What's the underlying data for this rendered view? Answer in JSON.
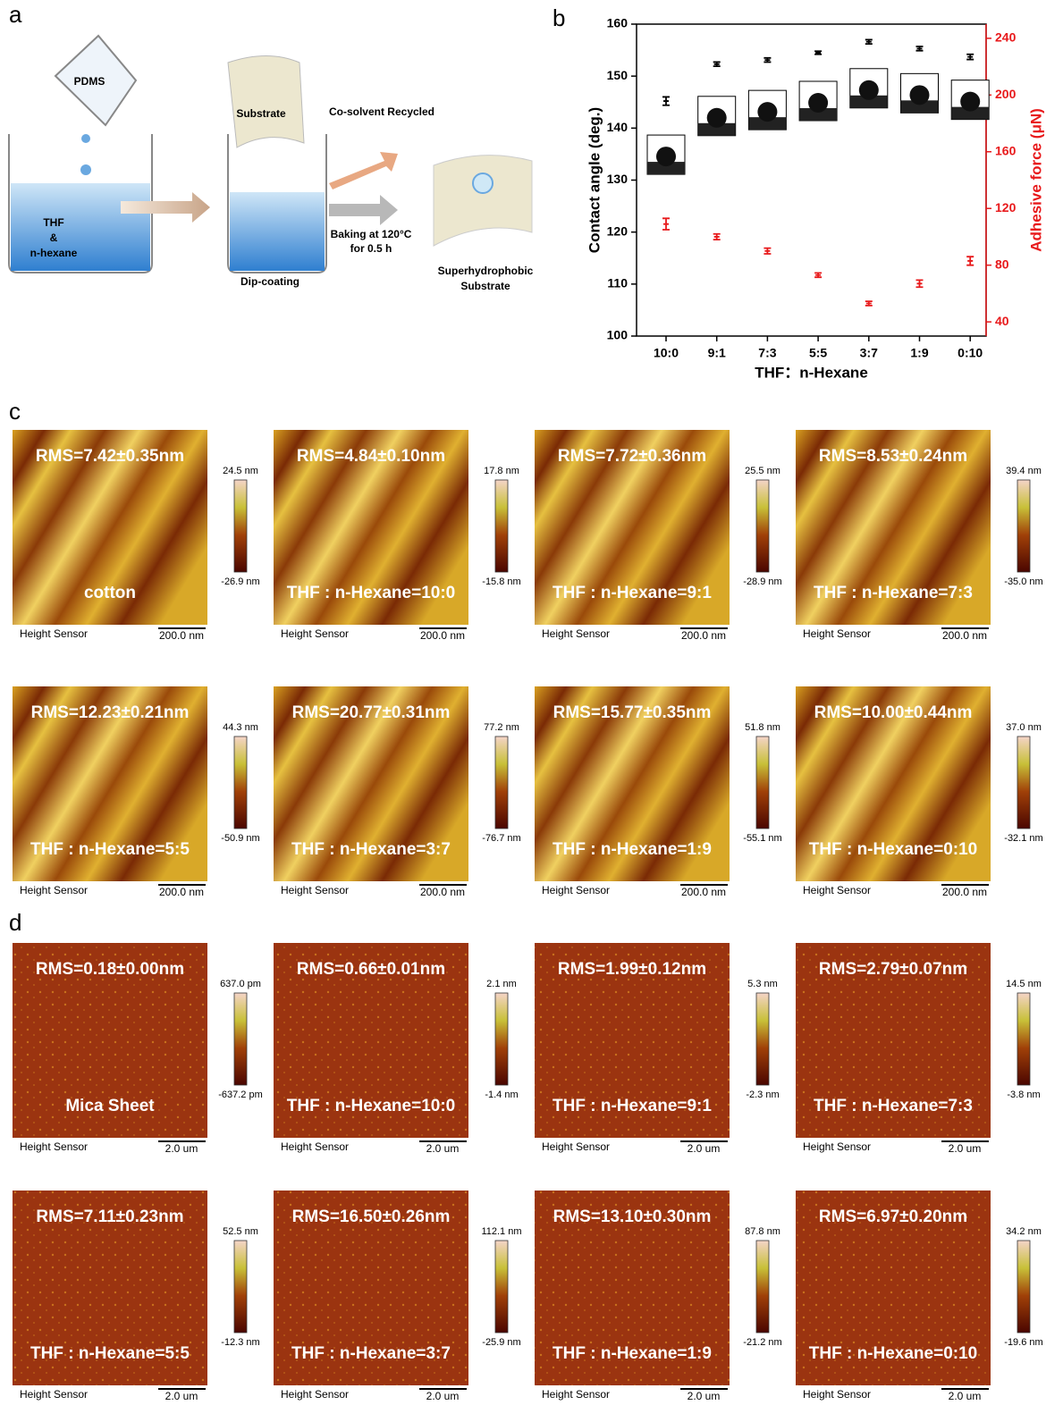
{
  "panel_labels": [
    "a",
    "b",
    "c",
    "d"
  ],
  "scheme": {
    "pdms": "PDMS",
    "solvent": [
      "THF",
      "&",
      "n-hexane"
    ],
    "substrate_top": "Substrate",
    "recycled": "Co-solvent Recycled",
    "baking": [
      "Baking at 120°C",
      "for 0.5 h"
    ],
    "dip": "Dip-coating",
    "product": [
      "Superhydrophobic",
      "Substrate"
    ]
  },
  "chart_data": {
    "type": "errorbar",
    "categories": [
      "10:0",
      "9:1",
      "7:3",
      "5:5",
      "3:7",
      "1:9",
      "0:10"
    ],
    "x_label": "THF：n-Hexane",
    "y_label": "Contact angle (deg.)",
    "y2_label": "Adhesive force (μN)",
    "ylim": [
      100,
      160
    ],
    "yticks": [
      100,
      110,
      120,
      130,
      140,
      150,
      160
    ],
    "y2lim": [
      30,
      250
    ],
    "y2ticks": [
      40,
      80,
      120,
      160,
      200,
      240
    ],
    "series": [
      {
        "color": "#000000",
        "values": [
          145.2,
          152.3,
          153.1,
          154.5,
          156.6,
          155.3,
          153.7
        ],
        "errors": [
          0.8,
          0.4,
          0.4,
          0.3,
          0.4,
          0.4,
          0.5
        ]
      },
      {
        "color": "#e8191b",
        "axis": "y2",
        "values": [
          109,
          100,
          90,
          73,
          53,
          67,
          83
        ],
        "errors": [
          4,
          2,
          2,
          1.5,
          1.5,
          2.5,
          3
        ]
      }
    ]
  },
  "panel_c": [
    {
      "rms": "RMS=7.42±0.35nm",
      "label": "cotton",
      "cmax": "24.5 nm",
      "cmin": "-26.9 nm",
      "sensor": "Height Sensor",
      "scale": "200.0 nm"
    },
    {
      "rms": "RMS=4.84±0.10nm",
      "label": "THF : n-Hexane=10:0",
      "cmax": "17.8 nm",
      "cmin": "-15.8 nm",
      "sensor": "Height Sensor",
      "scale": "200.0 nm"
    },
    {
      "rms": "RMS=7.72±0.36nm",
      "label": "THF : n-Hexane=9:1",
      "cmax": "25.5 nm",
      "cmin": "-28.9 nm",
      "sensor": "Height Sensor",
      "scale": "200.0 nm"
    },
    {
      "rms": "RMS=8.53±0.24nm",
      "label": "THF : n-Hexane=7:3",
      "cmax": "39.4 nm",
      "cmin": "-35.0 nm",
      "sensor": "Height Sensor",
      "scale": "200.0 nm"
    },
    {
      "rms": "RMS=12.23±0.21nm",
      "label": "THF : n-Hexane=5:5",
      "cmax": "44.3 nm",
      "cmin": "-50.9 nm",
      "sensor": "Height Sensor",
      "scale": "200.0 nm"
    },
    {
      "rms": "RMS=20.77±0.31nm",
      "label": "THF : n-Hexane=3:7",
      "cmax": "77.2 nm",
      "cmin": "-76.7 nm",
      "sensor": "Height Sensor",
      "scale": "200.0 nm"
    },
    {
      "rms": "RMS=15.77±0.35nm",
      "label": "THF : n-Hexane=1:9",
      "cmax": "51.8 nm",
      "cmin": "-55.1 nm",
      "sensor": "Height Sensor",
      "scale": "200.0 nm"
    },
    {
      "rms": "RMS=10.00±0.44nm",
      "label": "THF : n-Hexane=0:10",
      "cmax": "37.0 nm",
      "cmin": "-32.1 nm",
      "sensor": "Height Sensor",
      "scale": "200.0 nm"
    }
  ],
  "panel_d": [
    {
      "rms": "RMS=0.18±0.00nm",
      "label": "Mica Sheet",
      "cmax": "637.0 pm",
      "cmin": "-637.2 pm",
      "sensor": "Height Sensor",
      "scale": "2.0 um"
    },
    {
      "rms": "RMS=0.66±0.01nm",
      "label": "THF : n-Hexane=10:0",
      "cmax": "2.1 nm",
      "cmin": "-1.4 nm",
      "sensor": "Height Sensor",
      "scale": "2.0 um"
    },
    {
      "rms": "RMS=1.99±0.12nm",
      "label": "THF : n-Hexane=9:1",
      "cmax": "5.3 nm",
      "cmin": "-2.3 nm",
      "sensor": "Height Sensor",
      "scale": "2.0 um"
    },
    {
      "rms": "RMS=2.79±0.07nm",
      "label": "THF : n-Hexane=7:3",
      "cmax": "14.5 nm",
      "cmin": "-3.8 nm",
      "sensor": "Height Sensor",
      "scale": "2.0 um"
    },
    {
      "rms": "RMS=7.11±0.23nm",
      "label": "THF : n-Hexane=5:5",
      "cmax": "52.5 nm",
      "cmin": "-12.3 nm",
      "sensor": "Height Sensor",
      "scale": "2.0 um"
    },
    {
      "rms": "RMS=16.50±0.26nm",
      "label": "THF : n-Hexane=3:7",
      "cmax": "112.1 nm",
      "cmin": "-25.9 nm",
      "sensor": "Height Sensor",
      "scale": "2.0 um"
    },
    {
      "rms": "RMS=13.10±0.30nm",
      "label": "THF : n-Hexane=1:9",
      "cmax": "87.8 nm",
      "cmin": "-21.2 nm",
      "sensor": "Height Sensor",
      "scale": "2.0 um"
    },
    {
      "rms": "RMS=6.97±0.20nm",
      "label": "THF : n-Hexane=0:10",
      "cmax": "34.2 nm",
      "cmin": "-19.6 nm",
      "sensor": "Height Sensor",
      "scale": "2.0 um"
    }
  ]
}
